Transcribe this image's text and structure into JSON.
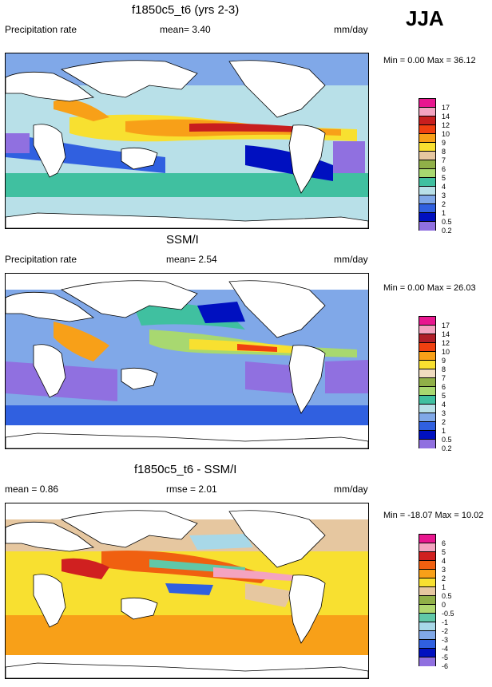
{
  "season": "JJA",
  "panels": [
    {
      "title": "f1850c5_t6 (yrs 2-3)",
      "left_label": "Precipitation rate",
      "mid_label": "mean=  3.40",
      "units": "mm/day",
      "minmax": "Min =   0.00 Max =  36.12",
      "levels": [
        "17",
        "14",
        "12",
        "10",
        "9",
        "8",
        "7",
        "6",
        "5",
        "4",
        "3",
        "2",
        "1",
        "0.5",
        "0.2"
      ],
      "colors": [
        "#e8178f",
        "#f4a3c0",
        "#c81e1e",
        "#f04010",
        "#f8a018",
        "#f8e030",
        "#e6c7a0",
        "#90b048",
        "#a8d870",
        "#40c0a0",
        "#b8e0e8",
        "#80a8e8",
        "#3060e0",
        "#0010c0",
        "#9070e0"
      ]
    },
    {
      "title": "SSM/I",
      "left_label": "Precipitation rate",
      "mid_label": "mean=   2.54",
      "units": "mm/day",
      "minmax": "Min =   0.00 Max =  26.03",
      "levels": [
        "17",
        "14",
        "12",
        "10",
        "9",
        "8",
        "7",
        "6",
        "5",
        "4",
        "3",
        "2",
        "1",
        "0.5",
        "0.2"
      ],
      "colors": [
        "#e8178f",
        "#f4a3c0",
        "#b01e28",
        "#f04010",
        "#f8a018",
        "#f8e030",
        "#f0dcc0",
        "#90b048",
        "#a8d870",
        "#40c0a0",
        "#b8e0e8",
        "#80a8e8",
        "#3060e0",
        "#0010c0",
        "#9070e0"
      ]
    },
    {
      "title": "f1850c5_t6 - SSM/I",
      "left_label": "mean =   0.86",
      "mid_label": "rmse =   2.01",
      "units": "mm/day",
      "minmax": "Min = -18.07 Max =  10.02",
      "levels": [
        "6",
        "5",
        "4",
        "3",
        "2",
        "1",
        "0.5",
        "0",
        "-0.5",
        "-1",
        "-2",
        "-3",
        "-4",
        "-5",
        "-6"
      ],
      "colors": [
        "#e8178f",
        "#f4a3c0",
        "#d02020",
        "#f06010",
        "#f8a018",
        "#f8e030",
        "#e6c7a0",
        "#90b048",
        "#b0d870",
        "#60c8a8",
        "#a8d8e8",
        "#80a8e8",
        "#3060e0",
        "#0010c0",
        "#9070e0"
      ]
    }
  ]
}
